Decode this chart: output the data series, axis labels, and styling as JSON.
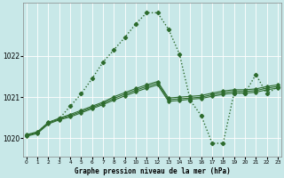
{
  "title": "Graphe pression niveau de la mer (hPa)",
  "bg_color": "#c8e8e8",
  "grid_color": "#aed4d4",
  "line_color": "#2d6b2d",
  "ylim": [
    1019.55,
    1023.3
  ],
  "xlim": [
    -0.3,
    23.3
  ],
  "yticks": [
    1020,
    1021,
    1022
  ],
  "xticks": [
    0,
    1,
    2,
    3,
    4,
    5,
    6,
    7,
    8,
    9,
    10,
    11,
    12,
    13,
    14,
    15,
    16,
    17,
    18,
    19,
    20,
    21,
    22,
    23
  ],
  "series": [
    {
      "x": [
        0,
        1,
        2,
        3,
        4,
        5,
        6,
        7,
        8,
        9,
        10,
        11,
        12,
        13,
        14,
        15,
        16,
        17,
        18,
        19,
        20,
        21,
        22,
        23
      ],
      "y": [
        1020.05,
        1020.12,
        1020.35,
        1020.45,
        1020.52,
        1020.62,
        1020.72,
        1020.82,
        1020.93,
        1021.03,
        1021.13,
        1021.22,
        1021.3,
        1020.9,
        1020.92,
        1020.95,
        1020.97,
        1021.02,
        1021.07,
        1021.1,
        1021.1,
        1021.12,
        1021.18,
        1021.22
      ],
      "style": "solid",
      "linewidth": 0.8,
      "marker": "D",
      "markersize": 1.8
    },
    {
      "x": [
        0,
        1,
        2,
        3,
        4,
        5,
        6,
        7,
        8,
        9,
        10,
        11,
        12,
        13,
        14,
        15,
        16,
        17,
        18,
        19,
        20,
        21,
        22,
        23
      ],
      "y": [
        1020.07,
        1020.14,
        1020.37,
        1020.47,
        1020.55,
        1020.65,
        1020.75,
        1020.85,
        1020.97,
        1021.07,
        1021.17,
        1021.26,
        1021.34,
        1020.94,
        1020.96,
        1020.98,
        1021.0,
        1021.06,
        1021.11,
        1021.14,
        1021.14,
        1021.16,
        1021.22,
        1021.26
      ],
      "style": "solid",
      "linewidth": 0.8,
      "marker": "D",
      "markersize": 1.8
    },
    {
      "x": [
        0,
        1,
        2,
        3,
        4,
        5,
        6,
        7,
        8,
        9,
        10,
        11,
        12,
        13,
        14,
        15,
        16,
        17,
        18,
        19,
        20,
        21,
        22,
        23
      ],
      "y": [
        1020.09,
        1020.16,
        1020.39,
        1020.49,
        1020.58,
        1020.68,
        1020.78,
        1020.88,
        1021.01,
        1021.11,
        1021.21,
        1021.3,
        1021.38,
        1020.98,
        1021.0,
        1021.02,
        1021.04,
        1021.1,
        1021.15,
        1021.18,
        1021.18,
        1021.2,
        1021.26,
        1021.3
      ],
      "style": "solid",
      "linewidth": 0.8,
      "marker": "D",
      "markersize": 1.8
    },
    {
      "x": [
        0,
        1,
        2,
        3,
        4,
        5,
        6,
        7,
        8,
        9,
        10,
        11,
        12,
        13,
        14,
        15,
        16,
        17,
        18,
        19,
        20,
        21,
        22,
        23
      ],
      "y": [
        1020.08,
        1020.15,
        1020.38,
        1020.48,
        1020.78,
        1021.08,
        1021.45,
        1021.85,
        1022.15,
        1022.45,
        1022.78,
        1023.05,
        1023.05,
        1022.65,
        1022.05,
        1020.92,
        1020.55,
        1019.88,
        1019.88,
        1021.1,
        1021.1,
        1021.55,
        1021.08,
        1021.25
      ],
      "style": "dotted",
      "linewidth": 1.0,
      "marker": "D",
      "markersize": 2.2
    }
  ]
}
